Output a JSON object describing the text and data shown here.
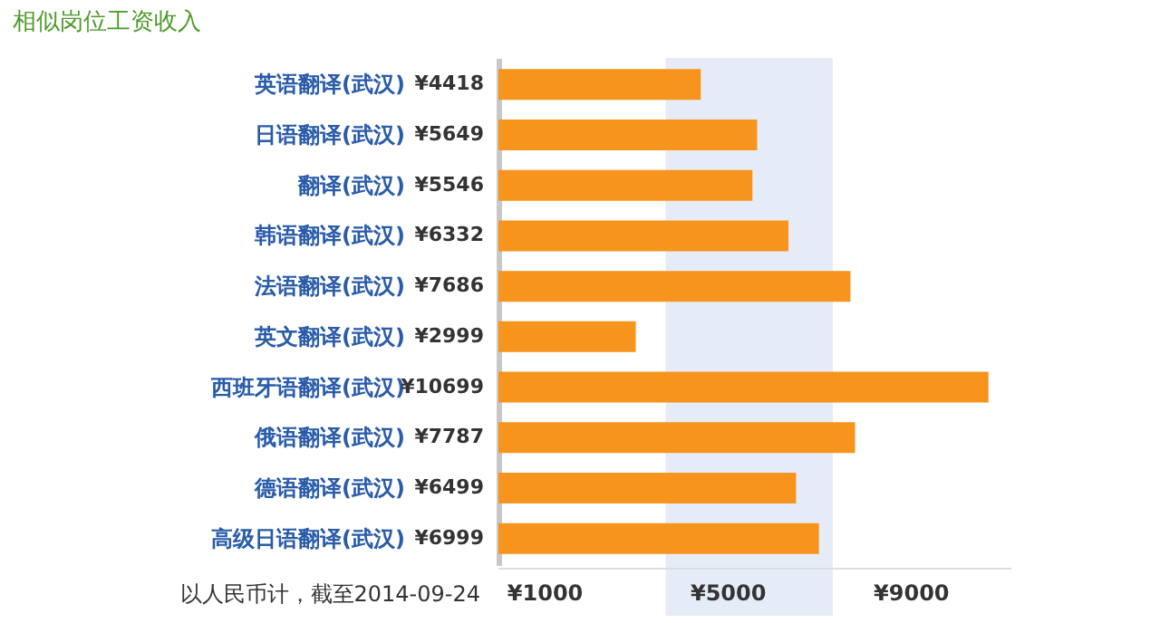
{
  "chart_data": {
    "type": "bar",
    "orientation": "horizontal",
    "title": "相似岗位工资收入",
    "categories": [
      "英语翻译(武汉)",
      "日语翻译(武汉)",
      "翻译(武汉)",
      "韩语翻译(武汉)",
      "法语翻译(武汉)",
      "英文翻译(武汉)",
      "西班牙语翻译(武汉)",
      "俄语翻译(武汉)",
      "德语翻译(武汉)",
      "高级日语翻译(武汉)"
    ],
    "values": [
      4418,
      5649,
      5546,
      6332,
      7686,
      2999,
      10699,
      7787,
      6499,
      6999
    ],
    "value_labels": [
      "¥4418",
      "¥5649",
      "¥5546",
      "¥6332",
      "¥7686",
      "¥2999",
      "¥10699",
      "¥7787",
      "¥6499",
      "¥6999"
    ],
    "color": "#f7941d",
    "xlim": [
      0,
      11200
    ],
    "xticks": [
      {
        "value": 1000,
        "label": "¥1000"
      },
      {
        "value": 5000,
        "label": "¥5000"
      },
      {
        "value": 9000,
        "label": "¥9000"
      }
    ],
    "bands": [
      {
        "axis": "x",
        "from": 3650,
        "to": 7300,
        "color": "#e6ecf7"
      }
    ],
    "annotations": [
      "以人民币计，截至2014-09-24"
    ]
  }
}
